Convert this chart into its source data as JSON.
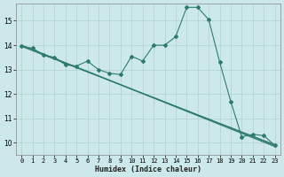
{
  "xlabel": "Humidex (Indice chaleur)",
  "background_color": "#cce8ea",
  "grid_color": "#b0d0d0",
  "line_color": "#2e7b6e",
  "xlim": [
    -0.5,
    23.5
  ],
  "ylim": [
    9.5,
    15.7
  ],
  "xticks": [
    0,
    1,
    2,
    3,
    4,
    5,
    6,
    7,
    8,
    9,
    10,
    11,
    12,
    13,
    14,
    15,
    16,
    17,
    18,
    19,
    20,
    21,
    22,
    23
  ],
  "yticks": [
    10,
    11,
    12,
    13,
    14,
    15
  ],
  "series_marker_x": [
    0,
    1,
    2,
    3,
    4,
    5,
    6,
    7,
    8,
    9,
    10,
    11,
    12,
    13,
    14,
    15,
    16,
    17,
    18,
    19,
    20,
    21,
    22,
    23
  ],
  "series_marker_y": [
    13.95,
    13.88,
    13.6,
    13.5,
    13.2,
    13.15,
    13.35,
    13.0,
    12.85,
    12.8,
    13.55,
    13.35,
    14.0,
    14.0,
    14.35,
    15.55,
    15.55,
    15.05,
    13.3,
    11.7,
    10.25,
    10.35,
    10.3,
    9.9
  ],
  "series_line1_x": [
    0,
    1,
    2,
    3,
    4,
    5,
    6,
    7,
    8,
    9,
    10,
    11,
    12,
    13,
    14,
    15,
    16,
    17,
    18,
    19,
    20,
    21,
    22,
    23
  ],
  "series_line1_y": [
    13.95,
    13.78,
    13.6,
    13.43,
    13.25,
    13.08,
    12.9,
    12.73,
    12.55,
    12.38,
    12.2,
    12.03,
    11.85,
    11.68,
    11.5,
    11.33,
    11.15,
    10.98,
    10.8,
    10.63,
    10.45,
    10.28,
    10.1,
    9.93
  ],
  "series_line2_x": [
    0,
    1,
    2,
    3,
    4,
    5,
    6,
    7,
    8,
    9,
    10,
    11,
    12,
    13,
    14,
    15,
    16,
    17,
    18,
    19,
    20,
    21,
    22,
    23
  ],
  "series_line2_y": [
    14.0,
    13.82,
    13.64,
    13.46,
    13.28,
    13.1,
    12.93,
    12.75,
    12.57,
    12.39,
    12.21,
    12.03,
    11.86,
    11.68,
    11.5,
    11.32,
    11.14,
    10.96,
    10.79,
    10.61,
    10.43,
    10.25,
    10.07,
    9.89
  ],
  "series_line3_x": [
    0,
    23
  ],
  "series_line3_y": [
    14.0,
    9.85
  ],
  "marker": "D",
  "marker_size": 2.0,
  "line_width": 0.8
}
